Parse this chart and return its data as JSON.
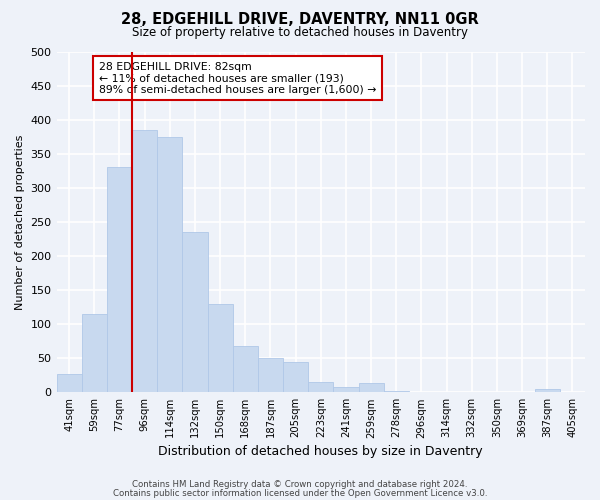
{
  "title": "28, EDGEHILL DRIVE, DAVENTRY, NN11 0GR",
  "subtitle": "Size of property relative to detached houses in Daventry",
  "xlabel": "Distribution of detached houses by size in Daventry",
  "ylabel": "Number of detached properties",
  "bar_color": "#c8d9ef",
  "bar_edge_color": "#b0c8e8",
  "categories": [
    "41sqm",
    "59sqm",
    "77sqm",
    "96sqm",
    "114sqm",
    "132sqm",
    "150sqm",
    "168sqm",
    "187sqm",
    "205sqm",
    "223sqm",
    "241sqm",
    "259sqm",
    "278sqm",
    "296sqm",
    "314sqm",
    "332sqm",
    "350sqm",
    "369sqm",
    "387sqm",
    "405sqm"
  ],
  "values": [
    27,
    115,
    330,
    385,
    375,
    235,
    130,
    68,
    50,
    45,
    15,
    8,
    13,
    2,
    1,
    1,
    0,
    0,
    0,
    5,
    0
  ],
  "ylim": [
    0,
    500
  ],
  "yticks": [
    0,
    50,
    100,
    150,
    200,
    250,
    300,
    350,
    400,
    450,
    500
  ],
  "vline_index": 2,
  "vline_color": "#cc0000",
  "annotation_text": "28 EDGEHILL DRIVE: 82sqm\n← 11% of detached houses are smaller (193)\n89% of semi-detached houses are larger (1,600) →",
  "annotation_box_color": "#ffffff",
  "annotation_box_edge": "#cc0000",
  "footnote1": "Contains HM Land Registry data © Crown copyright and database right 2024.",
  "footnote2": "Contains public sector information licensed under the Open Government Licence v3.0.",
  "bg_color": "#eef2f9",
  "plot_bg_color": "#eef2f9",
  "grid_color": "#ffffff"
}
